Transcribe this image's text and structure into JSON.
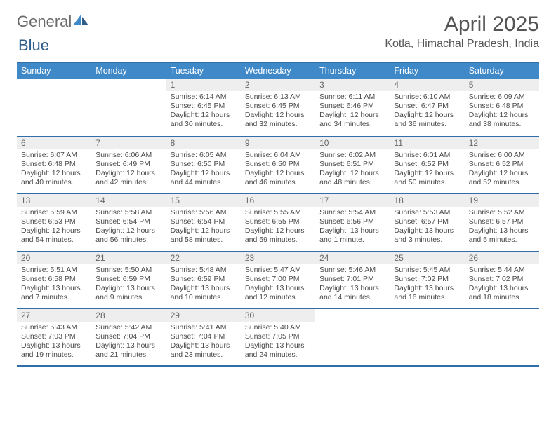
{
  "brand": {
    "left": "General",
    "right": "Blue",
    "accent": "#3f89c9"
  },
  "title": "April 2025",
  "location": "Kotla, Himachal Pradesh, India",
  "header_bg": "#3f89c9",
  "border_color": "#2f6ea6",
  "daynum_bg": "#eeeeee",
  "columns": [
    "Sunday",
    "Monday",
    "Tuesday",
    "Wednesday",
    "Thursday",
    "Friday",
    "Saturday"
  ],
  "weeks": [
    [
      {
        "n": "",
        "sr": "",
        "ss": "",
        "dl": ""
      },
      {
        "n": "",
        "sr": "",
        "ss": "",
        "dl": ""
      },
      {
        "n": "1",
        "sr": "Sunrise: 6:14 AM",
        "ss": "Sunset: 6:45 PM",
        "dl": "Daylight: 12 hours and 30 minutes."
      },
      {
        "n": "2",
        "sr": "Sunrise: 6:13 AM",
        "ss": "Sunset: 6:45 PM",
        "dl": "Daylight: 12 hours and 32 minutes."
      },
      {
        "n": "3",
        "sr": "Sunrise: 6:11 AM",
        "ss": "Sunset: 6:46 PM",
        "dl": "Daylight: 12 hours and 34 minutes."
      },
      {
        "n": "4",
        "sr": "Sunrise: 6:10 AM",
        "ss": "Sunset: 6:47 PM",
        "dl": "Daylight: 12 hours and 36 minutes."
      },
      {
        "n": "5",
        "sr": "Sunrise: 6:09 AM",
        "ss": "Sunset: 6:48 PM",
        "dl": "Daylight: 12 hours and 38 minutes."
      }
    ],
    [
      {
        "n": "6",
        "sr": "Sunrise: 6:07 AM",
        "ss": "Sunset: 6:48 PM",
        "dl": "Daylight: 12 hours and 40 minutes."
      },
      {
        "n": "7",
        "sr": "Sunrise: 6:06 AM",
        "ss": "Sunset: 6:49 PM",
        "dl": "Daylight: 12 hours and 42 minutes."
      },
      {
        "n": "8",
        "sr": "Sunrise: 6:05 AM",
        "ss": "Sunset: 6:50 PM",
        "dl": "Daylight: 12 hours and 44 minutes."
      },
      {
        "n": "9",
        "sr": "Sunrise: 6:04 AM",
        "ss": "Sunset: 6:50 PM",
        "dl": "Daylight: 12 hours and 46 minutes."
      },
      {
        "n": "10",
        "sr": "Sunrise: 6:02 AM",
        "ss": "Sunset: 6:51 PM",
        "dl": "Daylight: 12 hours and 48 minutes."
      },
      {
        "n": "11",
        "sr": "Sunrise: 6:01 AM",
        "ss": "Sunset: 6:52 PM",
        "dl": "Daylight: 12 hours and 50 minutes."
      },
      {
        "n": "12",
        "sr": "Sunrise: 6:00 AM",
        "ss": "Sunset: 6:52 PM",
        "dl": "Daylight: 12 hours and 52 minutes."
      }
    ],
    [
      {
        "n": "13",
        "sr": "Sunrise: 5:59 AM",
        "ss": "Sunset: 6:53 PM",
        "dl": "Daylight: 12 hours and 54 minutes."
      },
      {
        "n": "14",
        "sr": "Sunrise: 5:58 AM",
        "ss": "Sunset: 6:54 PM",
        "dl": "Daylight: 12 hours and 56 minutes."
      },
      {
        "n": "15",
        "sr": "Sunrise: 5:56 AM",
        "ss": "Sunset: 6:54 PM",
        "dl": "Daylight: 12 hours and 58 minutes."
      },
      {
        "n": "16",
        "sr": "Sunrise: 5:55 AM",
        "ss": "Sunset: 6:55 PM",
        "dl": "Daylight: 12 hours and 59 minutes."
      },
      {
        "n": "17",
        "sr": "Sunrise: 5:54 AM",
        "ss": "Sunset: 6:56 PM",
        "dl": "Daylight: 13 hours and 1 minute."
      },
      {
        "n": "18",
        "sr": "Sunrise: 5:53 AM",
        "ss": "Sunset: 6:57 PM",
        "dl": "Daylight: 13 hours and 3 minutes."
      },
      {
        "n": "19",
        "sr": "Sunrise: 5:52 AM",
        "ss": "Sunset: 6:57 PM",
        "dl": "Daylight: 13 hours and 5 minutes."
      }
    ],
    [
      {
        "n": "20",
        "sr": "Sunrise: 5:51 AM",
        "ss": "Sunset: 6:58 PM",
        "dl": "Daylight: 13 hours and 7 minutes."
      },
      {
        "n": "21",
        "sr": "Sunrise: 5:50 AM",
        "ss": "Sunset: 6:59 PM",
        "dl": "Daylight: 13 hours and 9 minutes."
      },
      {
        "n": "22",
        "sr": "Sunrise: 5:48 AM",
        "ss": "Sunset: 6:59 PM",
        "dl": "Daylight: 13 hours and 10 minutes."
      },
      {
        "n": "23",
        "sr": "Sunrise: 5:47 AM",
        "ss": "Sunset: 7:00 PM",
        "dl": "Daylight: 13 hours and 12 minutes."
      },
      {
        "n": "24",
        "sr": "Sunrise: 5:46 AM",
        "ss": "Sunset: 7:01 PM",
        "dl": "Daylight: 13 hours and 14 minutes."
      },
      {
        "n": "25",
        "sr": "Sunrise: 5:45 AM",
        "ss": "Sunset: 7:02 PM",
        "dl": "Daylight: 13 hours and 16 minutes."
      },
      {
        "n": "26",
        "sr": "Sunrise: 5:44 AM",
        "ss": "Sunset: 7:02 PM",
        "dl": "Daylight: 13 hours and 18 minutes."
      }
    ],
    [
      {
        "n": "27",
        "sr": "Sunrise: 5:43 AM",
        "ss": "Sunset: 7:03 PM",
        "dl": "Daylight: 13 hours and 19 minutes."
      },
      {
        "n": "28",
        "sr": "Sunrise: 5:42 AM",
        "ss": "Sunset: 7:04 PM",
        "dl": "Daylight: 13 hours and 21 minutes."
      },
      {
        "n": "29",
        "sr": "Sunrise: 5:41 AM",
        "ss": "Sunset: 7:04 PM",
        "dl": "Daylight: 13 hours and 23 minutes."
      },
      {
        "n": "30",
        "sr": "Sunrise: 5:40 AM",
        "ss": "Sunset: 7:05 PM",
        "dl": "Daylight: 13 hours and 24 minutes."
      },
      {
        "n": "",
        "sr": "",
        "ss": "",
        "dl": ""
      },
      {
        "n": "",
        "sr": "",
        "ss": "",
        "dl": ""
      },
      {
        "n": "",
        "sr": "",
        "ss": "",
        "dl": ""
      }
    ]
  ]
}
